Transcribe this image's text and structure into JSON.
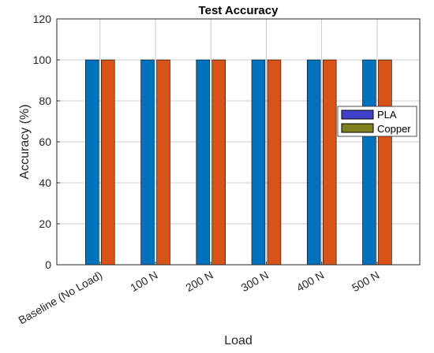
{
  "chart_data": {
    "type": "bar",
    "title": "Test Accuracy",
    "xlabel": "Load",
    "ylabel": "Accuracy (%)",
    "categories": [
      "Baseline (No Load)",
      "100 N",
      "200 N",
      "300 N",
      "400 N",
      "500 N"
    ],
    "series": [
      {
        "name": "PLA",
        "values": [
          100,
          100,
          100,
          100,
          100,
          100
        ],
        "color": "#0072BD",
        "legend_color": "#4040C8"
      },
      {
        "name": "Copper",
        "values": [
          100,
          100,
          100,
          100,
          100,
          100
        ],
        "color": "#D95319",
        "legend_color": "#7F7F1E"
      }
    ],
    "ylim": [
      0,
      120
    ],
    "yticks": [
      0,
      20,
      40,
      60,
      80,
      100,
      120
    ],
    "grid": true,
    "legend_position": "right"
  }
}
